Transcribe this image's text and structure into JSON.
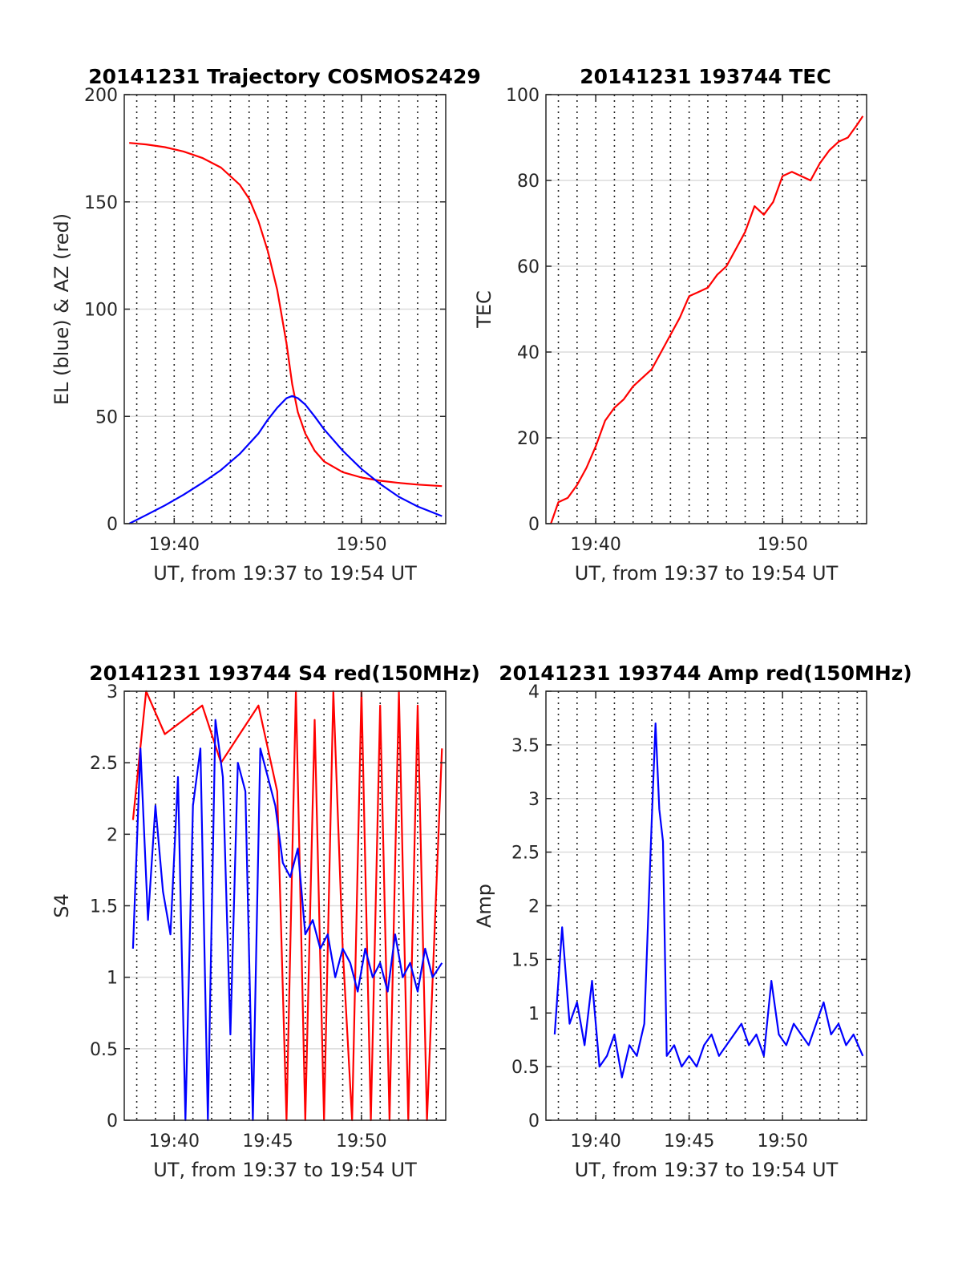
{
  "colors": {
    "series_red": "#ff0000",
    "series_blue": "#0000ff",
    "grid": "#dcdcdc",
    "axis": "#262626"
  },
  "chart_data": [
    {
      "type": "line",
      "title": "20141231 Trajectory COSMOS2429",
      "xlabel": "UT, from 19:37 to 19:54 UT",
      "ylabel": "EL (blue) & AZ (red)",
      "xlim": [
        "19:37:20",
        "19:54:30"
      ],
      "ylim": [
        0,
        200
      ],
      "xticks": [
        "19:40",
        "19:50"
      ],
      "yticks": [
        "0",
        "50",
        "100",
        "150",
        "200"
      ],
      "grid": true,
      "series": [
        {
          "color": "#ff0000",
          "x_minutes": [
            37.6,
            38.5,
            39.5,
            40.5,
            41.5,
            42.5,
            43.5,
            44.0,
            44.5,
            45.0,
            45.5,
            46.0,
            46.3,
            46.6,
            47.0,
            47.5,
            48.0,
            49.0,
            50.0,
            51.0,
            52.0,
            53.0,
            54.3
          ],
          "values": [
            177.5,
            176.8,
            175.5,
            173.5,
            170.5,
            166,
            158,
            151.5,
            141,
            127,
            109,
            84,
            65,
            52,
            42,
            34,
            29,
            24,
            21.5,
            20,
            19,
            18.2,
            17.5
          ]
        },
        {
          "color": "#0000ff",
          "x_minutes": [
            37.6,
            38.5,
            39.5,
            40.5,
            41.5,
            42.5,
            43.5,
            44.5,
            45.0,
            45.5,
            46.0,
            46.3,
            46.6,
            47.0,
            47.5,
            48.0,
            49.0,
            50.0,
            51.0,
            52.0,
            53.0,
            54.3
          ],
          "values": [
            0,
            4,
            8.5,
            13.5,
            19,
            25,
            32.5,
            42,
            48.5,
            54,
            58.5,
            59.5,
            58.5,
            55.5,
            50,
            44,
            34,
            25.5,
            18.5,
            12.5,
            8,
            3.5
          ]
        }
      ]
    },
    {
      "type": "line",
      "title": "20141231 193744 TEC",
      "xlabel": "UT, from 19:37 to 19:54 UT",
      "ylabel": "TEC",
      "xlim": [
        "19:37:20",
        "19:54:30"
      ],
      "ylim": [
        0,
        100
      ],
      "xticks": [
        "19:40",
        "19:50"
      ],
      "yticks": [
        "0",
        "20",
        "40",
        "60",
        "80",
        "100"
      ],
      "grid": true,
      "series": [
        {
          "color": "#ff0000",
          "x_minutes": [
            37.6,
            38.0,
            38.5,
            39.0,
            39.5,
            40.0,
            40.5,
            41.0,
            41.5,
            42.0,
            42.5,
            43.0,
            43.5,
            44.0,
            44.5,
            45.0,
            45.5,
            46.0,
            46.5,
            47.0,
            47.5,
            48.0,
            48.5,
            49.0,
            49.5,
            50.0,
            50.5,
            51.0,
            51.5,
            52.0,
            52.5,
            53.0,
            53.5,
            54.0,
            54.3
          ],
          "values": [
            0,
            5,
            6,
            9,
            13,
            18,
            24,
            27,
            29,
            32,
            34,
            36,
            40,
            44,
            48,
            53,
            54,
            55,
            58,
            60,
            64,
            68,
            74,
            72,
            75,
            81,
            82,
            81,
            80,
            84,
            87,
            89,
            90,
            93,
            95
          ]
        }
      ]
    },
    {
      "type": "line",
      "title": "20141231 193744 S4 red(150MHz)",
      "xlabel": "UT, from 19:37 to 19:54 UT",
      "ylabel": "S4",
      "xlim": [
        "19:37:20",
        "19:54:30"
      ],
      "ylim": [
        0,
        3
      ],
      "xticks": [
        "19:40",
        "19:45",
        "19:50"
      ],
      "yticks": [
        "0",
        "0.5",
        "1",
        "1.5",
        "2",
        "2.5",
        "3"
      ],
      "grid": true,
      "series": [
        {
          "color": "#ff0000",
          "x_minutes": [
            37.8,
            38.5,
            39.5,
            40.5,
            41.5,
            42.5,
            43.5,
            44.5,
            45.5,
            46.0,
            46.5,
            47.0,
            47.5,
            48.0,
            48.5,
            49.0,
            49.5,
            50.0,
            50.5,
            51.0,
            51.5,
            52.0,
            52.5,
            53.0,
            53.5,
            54.3
          ],
          "values": [
            2.1,
            3.0,
            2.7,
            2.8,
            2.9,
            2.5,
            2.7,
            2.9,
            2.3,
            0,
            3.0,
            0,
            2.8,
            0,
            3.0,
            1.2,
            0,
            3.0,
            0,
            2.9,
            0,
            3.0,
            0,
            2.9,
            0,
            2.6
          ]
        },
        {
          "color": "#0000ff",
          "x_minutes": [
            37.8,
            38.2,
            38.6,
            39.0,
            39.4,
            39.8,
            40.2,
            40.6,
            41.0,
            41.4,
            41.8,
            42.2,
            42.6,
            43.0,
            43.4,
            43.8,
            44.2,
            44.6,
            45.0,
            45.4,
            45.8,
            46.2,
            46.6,
            47.0,
            47.4,
            47.8,
            48.2,
            48.6,
            49.0,
            49.4,
            49.8,
            50.2,
            50.6,
            51.0,
            51.4,
            51.8,
            52.2,
            52.6,
            53.0,
            53.4,
            53.8,
            54.3
          ],
          "values": [
            1.2,
            2.6,
            1.4,
            2.2,
            1.6,
            1.3,
            2.4,
            0,
            2.2,
            2.6,
            0,
            2.8,
            2.4,
            0.6,
            2.5,
            2.3,
            0,
            2.6,
            2.4,
            2.2,
            1.8,
            1.7,
            1.9,
            1.3,
            1.4,
            1.2,
            1.3,
            1.0,
            1.2,
            1.1,
            0.9,
            1.2,
            1.0,
            1.1,
            0.9,
            1.3,
            1.0,
            1.1,
            0.9,
            1.2,
            1.0,
            1.1
          ]
        }
      ]
    },
    {
      "type": "line",
      "title": "20141231 193744 Amp red(150MHz)",
      "xlabel": "UT, from 19:37 to 19:54 UT",
      "ylabel": "Amp",
      "xlim": [
        "19:37:20",
        "19:54:30"
      ],
      "ylim": [
        0,
        4
      ],
      "xticks": [
        "19:40",
        "19:45",
        "19:50"
      ],
      "yticks": [
        "0",
        "0.5",
        "1",
        "1.5",
        "2",
        "2.5",
        "3",
        "3.5",
        "4"
      ],
      "grid": true,
      "series": [
        {
          "color": "#0000ff",
          "x_minutes": [
            37.8,
            38.2,
            38.6,
            39.0,
            39.4,
            39.8,
            40.2,
            40.6,
            41.0,
            41.4,
            41.8,
            42.2,
            42.6,
            43.0,
            43.2,
            43.4,
            43.6,
            43.8,
            44.2,
            44.6,
            45.0,
            45.4,
            45.8,
            46.2,
            46.6,
            47.0,
            47.4,
            47.8,
            48.2,
            48.6,
            49.0,
            49.4,
            49.8,
            50.2,
            50.6,
            51.0,
            51.4,
            51.8,
            52.2,
            52.6,
            53.0,
            53.4,
            53.8,
            54.3
          ],
          "values": [
            0.8,
            1.8,
            0.9,
            1.1,
            0.7,
            1.3,
            0.5,
            0.6,
            0.8,
            0.4,
            0.7,
            0.6,
            0.9,
            2.8,
            3.7,
            2.9,
            2.6,
            0.6,
            0.7,
            0.5,
            0.6,
            0.5,
            0.7,
            0.8,
            0.6,
            0.7,
            0.8,
            0.9,
            0.7,
            0.8,
            0.6,
            1.3,
            0.8,
            0.7,
            0.9,
            0.8,
            0.7,
            0.9,
            1.1,
            0.8,
            0.9,
            0.7,
            0.8,
            0.6
          ]
        }
      ]
    }
  ]
}
